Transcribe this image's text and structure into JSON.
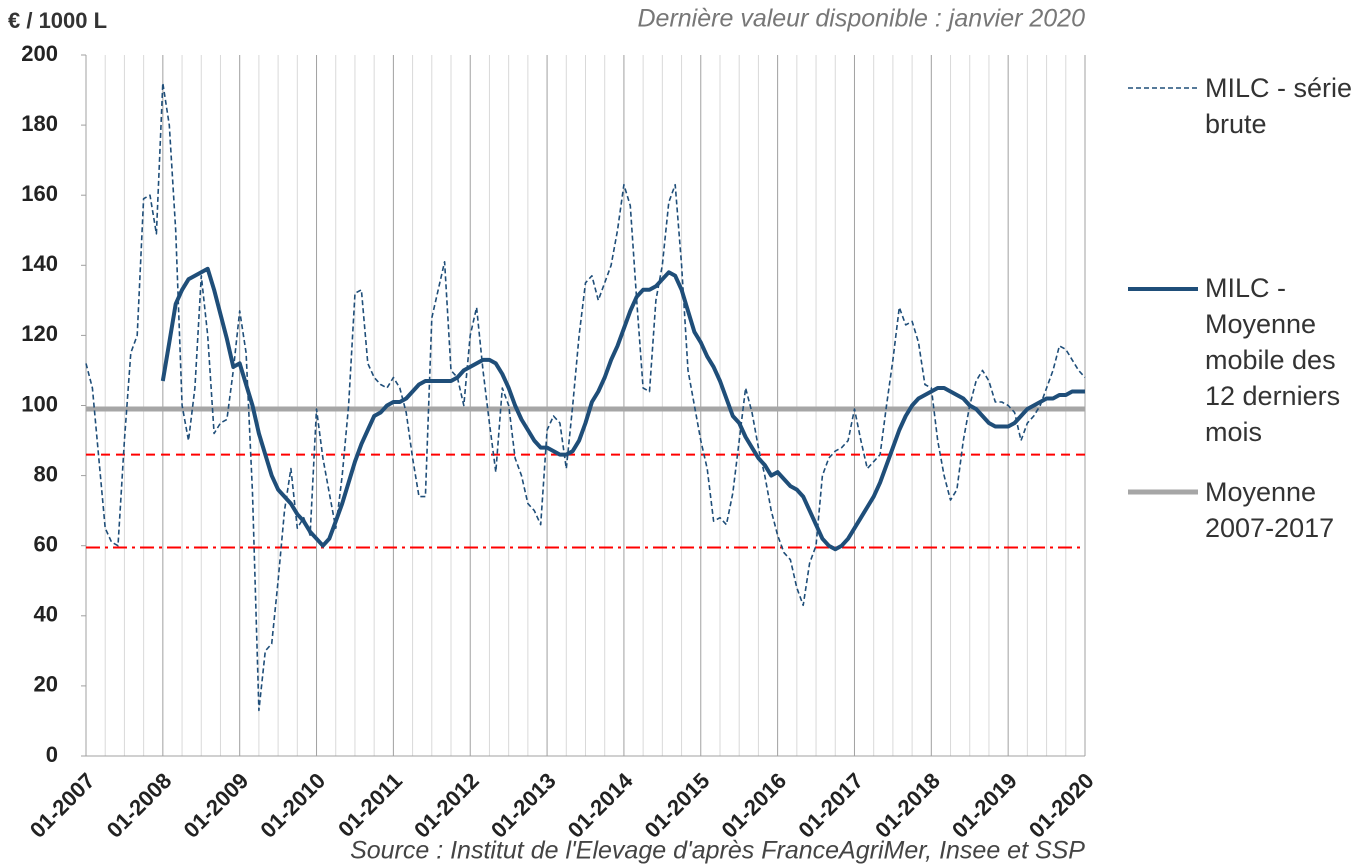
{
  "chart_data": {
    "type": "line",
    "y_label": "€ / 1000 L",
    "subtitle": "Dernière valeur disponible : janvier 2020",
    "source": "Source : Institut de l'Elevage d'après FranceAgriMer, Insee et SSP",
    "categories": [
      "01-2007",
      null,
      null,
      null,
      null,
      null,
      null,
      null,
      null,
      null,
      null,
      null,
      "01-2008",
      null,
      null,
      null,
      null,
      null,
      null,
      null,
      null,
      null,
      null,
      null,
      "01-2009",
      null,
      null,
      null,
      null,
      null,
      null,
      null,
      null,
      null,
      null,
      null,
      "01-2010",
      null,
      null,
      null,
      null,
      null,
      null,
      null,
      null,
      null,
      null,
      null,
      "01-2011",
      null,
      null,
      null,
      null,
      null,
      null,
      null,
      null,
      null,
      null,
      null,
      "01-2012",
      null,
      null,
      null,
      null,
      null,
      null,
      null,
      null,
      null,
      null,
      null,
      "01-2013",
      null,
      null,
      null,
      null,
      null,
      null,
      null,
      null,
      null,
      null,
      null,
      "01-2014",
      null,
      null,
      null,
      null,
      null,
      null,
      null,
      null,
      null,
      null,
      null,
      "01-2015",
      null,
      null,
      null,
      null,
      null,
      null,
      null,
      null,
      null,
      null,
      null,
      "01-2016",
      null,
      null,
      null,
      null,
      null,
      null,
      null,
      null,
      null,
      null,
      null,
      "01-2017",
      null,
      null,
      null,
      null,
      null,
      null,
      null,
      null,
      null,
      null,
      null,
      "01-2018",
      null,
      null,
      null,
      null,
      null,
      null,
      null,
      null,
      null,
      null,
      null,
      "01-2019",
      null,
      null,
      null,
      null,
      null,
      null,
      null,
      null,
      null,
      null,
      null,
      "01-2020"
    ],
    "series": [
      {
        "name": "MILC - série brute",
        "color": "#1f4e79",
        "dash": true,
        "width": 1.6,
        "values": [
          112,
          105,
          85,
          65,
          61,
          60,
          90,
          115,
          120,
          159,
          160,
          149,
          192,
          180,
          150,
          100,
          90,
          105,
          137,
          120,
          92,
          95,
          96,
          110,
          127,
          115,
          75,
          13,
          30,
          32,
          50,
          70,
          82,
          65,
          68,
          63,
          99,
          85,
          75,
          65,
          80,
          100,
          132,
          133,
          112,
          108,
          106,
          105,
          108,
          105,
          98,
          85,
          74,
          74,
          125,
          133,
          141,
          110,
          108,
          100,
          120,
          128,
          110,
          95,
          81,
          105,
          100,
          85,
          80,
          72,
          70,
          66,
          93,
          97,
          95,
          82,
          100,
          120,
          135,
          137,
          130,
          135,
          140,
          150,
          163,
          157,
          130,
          105,
          104,
          130,
          140,
          158,
          163,
          140,
          110,
          100,
          90,
          82,
          67,
          68,
          66,
          75,
          90,
          105,
          98,
          88,
          80,
          70,
          63,
          58,
          56,
          48,
          43,
          55,
          60,
          80,
          85,
          87,
          88,
          90,
          99,
          90,
          82,
          84,
          86,
          100,
          113,
          128,
          123,
          124,
          118,
          106,
          105,
          90,
          80,
          73,
          76,
          90,
          100,
          107,
          110,
          107,
          101,
          101,
          100,
          98,
          90,
          95,
          97,
          100,
          105,
          110,
          117,
          116,
          113,
          110,
          108
        ]
      },
      {
        "name": "MILC - Moyenne mobile des 12 derniers mois",
        "color": "#1f4e79",
        "dash": false,
        "width": 4,
        "values": [
          null,
          null,
          null,
          null,
          null,
          null,
          null,
          null,
          null,
          null,
          null,
          null,
          107,
          118,
          129,
          133,
          136,
          137,
          138,
          139,
          133,
          126,
          119,
          111,
          112,
          106,
          100,
          92,
          86,
          80,
          76,
          74,
          72,
          69,
          67,
          64,
          62,
          60,
          62,
          67,
          72,
          78,
          84,
          89,
          93,
          97,
          98,
          100,
          101,
          101,
          102,
          104,
          106,
          107,
          107,
          107,
          107,
          107,
          108,
          110,
          111,
          112,
          113,
          113,
          112,
          109,
          105,
          100,
          96,
          93,
          90,
          88,
          88,
          87,
          86,
          86,
          87,
          90,
          95,
          101,
          104,
          108,
          113,
          117,
          122,
          127,
          131,
          133,
          133,
          134,
          136,
          138,
          137,
          133,
          127,
          121,
          118,
          114,
          111,
          107,
          102,
          97,
          95,
          91,
          88,
          85,
          83,
          80,
          81,
          79,
          77,
          76,
          74,
          70,
          66,
          62,
          60,
          59,
          60,
          62,
          65,
          68,
          71,
          74,
          78,
          83,
          88,
          93,
          97,
          100,
          102,
          103,
          104,
          105,
          105,
          104,
          103,
          102,
          100,
          99,
          97,
          95,
          94,
          94,
          94,
          95,
          97,
          99,
          100,
          101,
          102,
          102,
          103,
          103,
          104,
          104,
          104
        ]
      }
    ],
    "average": {
      "name": "Moyenne 2007-2017",
      "color": "#a6a6a6",
      "value": 99
    },
    "reference_lines": [
      {
        "value": 86,
        "color": "#ff0000",
        "style": "dash"
      },
      {
        "value": 59.5,
        "color": "#ff0000",
        "style": "dashdot"
      }
    ],
    "ylim": [
      0,
      200
    ],
    "yticks": [
      0,
      20,
      40,
      60,
      80,
      100,
      120,
      140,
      160,
      180,
      200
    ],
    "vgrid_every": 3
  }
}
